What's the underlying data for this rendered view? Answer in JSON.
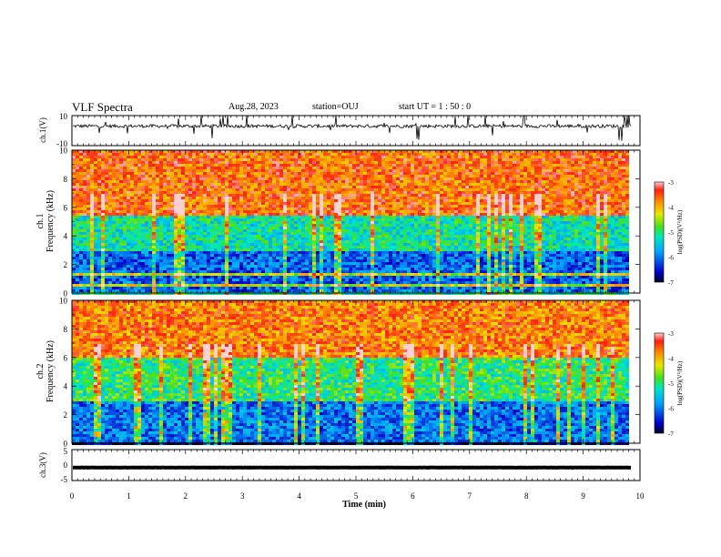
{
  "header": {
    "title": "VLF Spectra",
    "date": "Aug.28, 2023",
    "station": "station=OUJ",
    "start_ut": "start  UT =   1 : 50 : 0"
  },
  "chart_data": [
    {
      "type": "line",
      "ylabel": "ch.1(V)",
      "ylim": [
        -10,
        10
      ],
      "yticks": [
        "10",
        "-10"
      ],
      "baseline": 3,
      "xlim": [
        0,
        10
      ]
    },
    {
      "type": "heatmap",
      "ylabel_line1": "ch.1",
      "ylabel_line2": "Frequency  (kHz)",
      "ylim": [
        0,
        10
      ],
      "yticks": [
        "0",
        "2",
        "4",
        "6",
        "8",
        "10"
      ],
      "xlim": [
        0,
        10
      ],
      "data_end_min": 9.85,
      "colorbar": {
        "label": "log(PSD)(V²/Hz)",
        "range": [
          -7,
          -3
        ],
        "ticks": [
          "-3",
          "-4",
          "-5",
          "-6",
          "-7"
        ]
      },
      "bands": [
        {
          "from_khz": 0,
          "to_khz": 3,
          "level": -6.1
        },
        {
          "from_khz": 3,
          "to_khz": 5.5,
          "level": -5.2
        },
        {
          "from_khz": 5.5,
          "to_khz": 10,
          "level": -3.6
        }
      ]
    },
    {
      "type": "heatmap",
      "ylabel_line1": "ch.2",
      "ylabel_line2": "Frequency  (kHz)",
      "ylim": [
        0,
        10
      ],
      "yticks": [
        "0",
        "2",
        "4",
        "6",
        "8",
        "10"
      ],
      "xlim": [
        0,
        10
      ],
      "data_end_min": 9.85,
      "colorbar": {
        "label": "log(PSD)(V²/Hz)",
        "range": [
          -7,
          -3
        ],
        "ticks": [
          "-3",
          "-4",
          "-5",
          "-6",
          "-7"
        ]
      },
      "bands": [
        {
          "from_khz": 0,
          "to_khz": 3,
          "level": -6.0
        },
        {
          "from_khz": 3,
          "to_khz": 6,
          "level": -5.0
        },
        {
          "from_khz": 6,
          "to_khz": 10,
          "level": -3.7
        }
      ]
    },
    {
      "type": "line",
      "ylabel": "ch.3(V)",
      "ylim": [
        -5,
        5
      ],
      "yticks": [
        "5",
        "0",
        "-5"
      ],
      "baseline": -0.8,
      "xlim": [
        0,
        10
      ]
    }
  ],
  "xaxis": {
    "label": "Time  (min)",
    "ticks": [
      "0",
      "1",
      "2",
      "3",
      "4",
      "5",
      "6",
      "7",
      "8",
      "9",
      "10"
    ]
  }
}
